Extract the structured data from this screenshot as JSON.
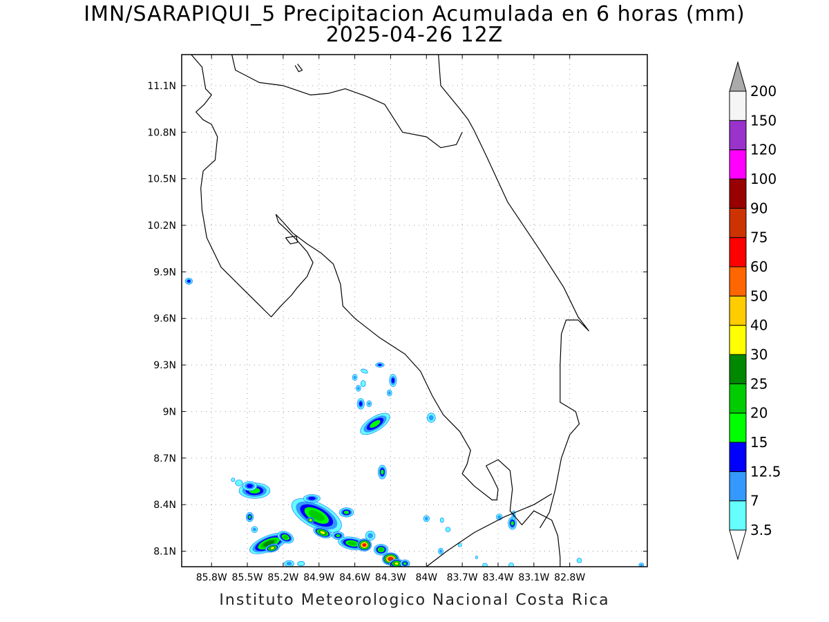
{
  "title": {
    "line1": "IMN/SARAPIQUI_5 Precipitacion Acumulada en 6 horas (mm)",
    "line2": "2025-04-26 12Z"
  },
  "footer": "Instituto Meteorologico Nacional Costa Rica",
  "map": {
    "lon_range": [
      -86.05,
      -82.15
    ],
    "lat_range": [
      8.0,
      11.3
    ],
    "x_ticks": [
      {
        "value": -85.8,
        "label": "85.8W"
      },
      {
        "value": -85.5,
        "label": "85.5W"
      },
      {
        "value": -85.2,
        "label": "85.2W"
      },
      {
        "value": -84.9,
        "label": "84.9W"
      },
      {
        "value": -84.6,
        "label": "84.6W"
      },
      {
        "value": -84.3,
        "label": "84.3W"
      },
      {
        "value": -84.0,
        "label": "84W"
      },
      {
        "value": -83.7,
        "label": "83.7W"
      },
      {
        "value": -83.4,
        "label": "83.4W"
      },
      {
        "value": -83.1,
        "label": "83.1W"
      },
      {
        "value": -82.8,
        "label": "82.8W"
      }
    ],
    "y_ticks": [
      {
        "value": 8.1,
        "label": "8.1N"
      },
      {
        "value": 8.4,
        "label": "8.4N"
      },
      {
        "value": 8.7,
        "label": "8.7N"
      },
      {
        "value": 9.0,
        "label": "9N"
      },
      {
        "value": 9.3,
        "label": "9.3N"
      },
      {
        "value": 9.6,
        "label": "9.6N"
      },
      {
        "value": 9.9,
        "label": "9.9N"
      },
      {
        "value": 10.2,
        "label": "10.2N"
      },
      {
        "value": 10.5,
        "label": "10.5N"
      },
      {
        "value": 10.8,
        "label": "10.8N"
      },
      {
        "value": 11.1,
        "label": "11.1N"
      }
    ],
    "grid": "dotted",
    "coastline": [
      [
        [
          -85.97,
          11.3
        ],
        [
          -85.88,
          11.22
        ],
        [
          -85.85,
          11.08
        ],
        [
          -85.8,
          11.04
        ],
        [
          -85.86,
          10.98
        ],
        [
          -85.93,
          10.93
        ],
        [
          -85.87,
          10.88
        ],
        [
          -85.8,
          10.85
        ],
        [
          -85.75,
          10.77
        ],
        [
          -85.77,
          10.62
        ],
        [
          -85.8,
          10.6
        ],
        [
          -85.87,
          10.55
        ],
        [
          -85.89,
          10.44
        ],
        [
          -85.88,
          10.3
        ],
        [
          -85.84,
          10.12
        ],
        [
          -85.72,
          9.93
        ],
        [
          -85.55,
          9.8
        ],
        [
          -85.3,
          9.61
        ],
        [
          -85.22,
          9.68
        ],
        [
          -85.13,
          9.75
        ],
        [
          -85.08,
          9.8
        ],
        [
          -85.0,
          9.87
        ],
        [
          -84.95,
          9.96
        ],
        [
          -85.0,
          10.03
        ],
        [
          -85.08,
          10.1
        ],
        [
          -85.17,
          10.17
        ],
        [
          -85.24,
          10.22
        ],
        [
          -85.26,
          10.27
        ],
        [
          -85.2,
          10.22
        ],
        [
          -85.12,
          10.15
        ],
        [
          -85.0,
          10.08
        ],
        [
          -84.88,
          10.02
        ],
        [
          -84.78,
          9.95
        ],
        [
          -84.72,
          9.82
        ],
        [
          -84.7,
          9.68
        ],
        [
          -84.6,
          9.6
        ],
        [
          -84.4,
          9.48
        ],
        [
          -84.18,
          9.37
        ],
        [
          -84.05,
          9.26
        ],
        [
          -83.95,
          9.1
        ],
        [
          -83.86,
          8.98
        ],
        [
          -83.72,
          8.87
        ],
        [
          -83.63,
          8.75
        ],
        [
          -83.66,
          8.66
        ],
        [
          -83.7,
          8.6
        ],
        [
          -83.6,
          8.52
        ],
        [
          -83.45,
          8.43
        ],
        [
          -83.41,
          8.43
        ],
        [
          -83.4,
          8.5
        ],
        [
          -83.45,
          8.58
        ],
        [
          -83.5,
          8.65
        ],
        [
          -83.4,
          8.69
        ],
        [
          -83.3,
          8.62
        ],
        [
          -83.28,
          8.5
        ],
        [
          -83.3,
          8.36
        ],
        [
          -83.2,
          8.27
        ],
        [
          -83.1,
          8.36
        ],
        [
          -82.95,
          8.3
        ],
        [
          -82.9,
          8.2
        ],
        [
          -82.88,
          8.06
        ],
        [
          -82.88,
          8.0
        ]
      ],
      [
        [
          -84.0,
          8.0
        ],
        [
          -83.83,
          8.1
        ],
        [
          -83.6,
          8.22
        ],
        [
          -83.35,
          8.32
        ],
        [
          -83.1,
          8.4
        ],
        [
          -82.95,
          8.47
        ]
      ],
      [
        [
          -83.9,
          11.3
        ],
        [
          -83.88,
          11.1
        ],
        [
          -83.72,
          10.95
        ],
        [
          -83.65,
          10.88
        ],
        [
          -83.6,
          10.81
        ],
        [
          -83.5,
          10.65
        ],
        [
          -83.32,
          10.35
        ],
        [
          -83.05,
          10.04
        ],
        [
          -82.85,
          9.8
        ],
        [
          -82.73,
          9.61
        ],
        [
          -82.64,
          9.52
        ],
        [
          -82.73,
          9.59
        ],
        [
          -82.83,
          9.59
        ],
        [
          -82.87,
          9.5
        ],
        [
          -82.88,
          9.3
        ],
        [
          -82.88,
          9.06
        ],
        [
          -82.75,
          9.0
        ],
        [
          -82.72,
          8.92
        ],
        [
          -82.8,
          8.85
        ],
        [
          -82.87,
          8.7
        ],
        [
          -82.92,
          8.5
        ],
        [
          -82.97,
          8.35
        ],
        [
          -83.05,
          8.25
        ]
      ],
      [
        [
          -85.63,
          11.3
        ],
        [
          -85.6,
          11.2
        ],
        [
          -85.4,
          11.12
        ],
        [
          -85.2,
          11.1
        ],
        [
          -84.97,
          11.04
        ],
        [
          -84.82,
          11.05
        ],
        [
          -84.68,
          11.08
        ],
        [
          -84.5,
          11.03
        ],
        [
          -84.35,
          10.98
        ],
        [
          -84.2,
          10.8
        ],
        [
          -84.0,
          10.77
        ],
        [
          -83.88,
          10.7
        ],
        [
          -83.75,
          10.72
        ],
        [
          -83.7,
          10.8
        ]
      ],
      [
        [
          -85.18,
          10.12
        ],
        [
          -85.09,
          10.13
        ],
        [
          -85.08,
          10.09
        ],
        [
          -85.14,
          10.08
        ],
        [
          -85.18,
          10.12
        ]
      ],
      [
        [
          -85.1,
          11.23
        ],
        [
          -85.07,
          11.19
        ],
        [
          -85.04,
          11.2
        ],
        [
          -85.08,
          11.24
        ]
      ]
    ],
    "shade_levels": [
      {
        "min": 3.5,
        "color": "#66ffff"
      },
      {
        "min": 7,
        "color": "#3399ff"
      },
      {
        "min": 12.5,
        "color": "#0000ff"
      },
      {
        "min": 15,
        "color": "#00ff00"
      },
      {
        "min": 20,
        "color": "#00cc00"
      },
      {
        "min": 25,
        "color": "#008800"
      },
      {
        "min": 30,
        "color": "#ffff00"
      },
      {
        "min": 40,
        "color": "#ffcc00"
      },
      {
        "min": 50,
        "color": "#ff6600"
      },
      {
        "min": 60,
        "color": "#ff0000"
      },
      {
        "min": 75,
        "color": "#cc3300"
      },
      {
        "min": 90,
        "color": "#990000"
      },
      {
        "min": 100,
        "color": "#ff00ff"
      },
      {
        "min": 120,
        "color": "#9933cc"
      },
      {
        "min": 150,
        "color": "#f5f5f5"
      }
    ],
    "precip_cells": [
      {
        "lon": -85.99,
        "lat": 9.84,
        "rx": 0.03,
        "ry": 0.02,
        "rot": 0,
        "max": 14
      },
      {
        "lon": -84.39,
        "lat": 9.3,
        "rx": 0.035,
        "ry": 0.015,
        "rot": 0,
        "max": 14
      },
      {
        "lon": -84.52,
        "lat": 9.26,
        "rx": 0.03,
        "ry": 0.012,
        "rot": -20,
        "max": 5
      },
      {
        "lon": -84.6,
        "lat": 9.22,
        "rx": 0.02,
        "ry": 0.02,
        "rot": 0,
        "max": 8
      },
      {
        "lon": -84.53,
        "lat": 9.18,
        "rx": 0.02,
        "ry": 0.02,
        "rot": 0,
        "max": 5
      },
      {
        "lon": -84.57,
        "lat": 9.15,
        "rx": 0.02,
        "ry": 0.02,
        "rot": 0,
        "max": 8
      },
      {
        "lon": -84.28,
        "lat": 9.2,
        "rx": 0.03,
        "ry": 0.04,
        "rot": 0,
        "max": 14
      },
      {
        "lon": -84.31,
        "lat": 9.12,
        "rx": 0.02,
        "ry": 0.02,
        "rot": 0,
        "max": 9
      },
      {
        "lon": -84.55,
        "lat": 9.05,
        "rx": 0.03,
        "ry": 0.035,
        "rot": 0,
        "max": 14
      },
      {
        "lon": -84.48,
        "lat": 9.05,
        "rx": 0.02,
        "ry": 0.02,
        "rot": 0,
        "max": 8
      },
      {
        "lon": -84.43,
        "lat": 8.92,
        "rx": 0.14,
        "ry": 0.045,
        "rot": 32,
        "max": 18
      },
      {
        "lon": -83.96,
        "lat": 8.96,
        "rx": 0.035,
        "ry": 0.03,
        "rot": 0,
        "max": 9
      },
      {
        "lon": -84.37,
        "lat": 8.61,
        "rx": 0.035,
        "ry": 0.045,
        "rot": 0,
        "max": 18
      },
      {
        "lon": -85.44,
        "lat": 8.49,
        "rx": 0.13,
        "ry": 0.05,
        "rot": 0,
        "max": 18
      },
      {
        "lon": -85.48,
        "lat": 8.52,
        "rx": 0.06,
        "ry": 0.03,
        "rot": 0,
        "max": 13
      },
      {
        "lon": -85.57,
        "lat": 8.54,
        "rx": 0.03,
        "ry": 0.02,
        "rot": 0,
        "max": 5
      },
      {
        "lon": -85.62,
        "lat": 8.56,
        "rx": 0.015,
        "ry": 0.012,
        "rot": 0,
        "max": 4
      },
      {
        "lon": -85.48,
        "lat": 8.32,
        "rx": 0.03,
        "ry": 0.03,
        "rot": 0,
        "max": 16
      },
      {
        "lon": -85.44,
        "lat": 8.24,
        "rx": 0.025,
        "ry": 0.02,
        "rot": 0,
        "max": 8
      },
      {
        "lon": -85.32,
        "lat": 8.15,
        "rx": 0.17,
        "ry": 0.05,
        "rot": 22,
        "max": 26
      },
      {
        "lon": -85.29,
        "lat": 8.12,
        "rx": 0.06,
        "ry": 0.025,
        "rot": 15,
        "max": 36
      },
      {
        "lon": -85.18,
        "lat": 8.19,
        "rx": 0.07,
        "ry": 0.035,
        "rot": -25,
        "max": 22
      },
      {
        "lon": -85.15,
        "lat": 8.02,
        "rx": 0.04,
        "ry": 0.02,
        "rot": 0,
        "max": 7
      },
      {
        "lon": -85.05,
        "lat": 8.02,
        "rx": 0.03,
        "ry": 0.015,
        "rot": 0,
        "max": 5
      },
      {
        "lon": -84.92,
        "lat": 8.33,
        "rx": 0.23,
        "ry": 0.08,
        "rot": -28,
        "max": 24
      },
      {
        "lon": -84.96,
        "lat": 8.44,
        "rx": 0.07,
        "ry": 0.025,
        "rot": 0,
        "max": 14
      },
      {
        "lon": -84.87,
        "lat": 8.22,
        "rx": 0.08,
        "ry": 0.03,
        "rot": -20,
        "max": 34
      },
      {
        "lon": -84.97,
        "lat": 8.3,
        "rx": 0.03,
        "ry": 0.02,
        "rot": 0,
        "max": 32
      },
      {
        "lon": -84.74,
        "lat": 8.2,
        "rx": 0.05,
        "ry": 0.025,
        "rot": 0,
        "max": 18
      },
      {
        "lon": -84.67,
        "lat": 8.35,
        "rx": 0.06,
        "ry": 0.03,
        "rot": 0,
        "max": 16
      },
      {
        "lon": -84.62,
        "lat": 8.15,
        "rx": 0.12,
        "ry": 0.04,
        "rot": -10,
        "max": 22
      },
      {
        "lon": -84.52,
        "lat": 8.14,
        "rx": 0.06,
        "ry": 0.04,
        "rot": 0,
        "max": 62
      },
      {
        "lon": -84.47,
        "lat": 8.2,
        "rx": 0.04,
        "ry": 0.03,
        "rot": 0,
        "max": 12
      },
      {
        "lon": -84.38,
        "lat": 8.11,
        "rx": 0.06,
        "ry": 0.035,
        "rot": 0,
        "max": 20
      },
      {
        "lon": -84.3,
        "lat": 8.05,
        "rx": 0.07,
        "ry": 0.04,
        "rot": 0,
        "max": 80
      },
      {
        "lon": -84.25,
        "lat": 8.02,
        "rx": 0.06,
        "ry": 0.03,
        "rot": 0,
        "max": 30
      },
      {
        "lon": -84.18,
        "lat": 8.02,
        "rx": 0.04,
        "ry": 0.025,
        "rot": 0,
        "max": 16
      },
      {
        "lon": -84.0,
        "lat": 8.31,
        "rx": 0.025,
        "ry": 0.02,
        "rot": 0,
        "max": 8
      },
      {
        "lon": -83.87,
        "lat": 8.3,
        "rx": 0.015,
        "ry": 0.015,
        "rot": 0,
        "max": 4
      },
      {
        "lon": -83.82,
        "lat": 8.24,
        "rx": 0.02,
        "ry": 0.015,
        "rot": 0,
        "max": 5
      },
      {
        "lon": -83.88,
        "lat": 8.1,
        "rx": 0.02,
        "ry": 0.02,
        "rot": 0,
        "max": 8
      },
      {
        "lon": -83.72,
        "lat": 8.14,
        "rx": 0.015,
        "ry": 0.012,
        "rot": 0,
        "max": 4
      },
      {
        "lon": -83.58,
        "lat": 8.06,
        "rx": 0.01,
        "ry": 0.01,
        "rot": 0,
        "max": 4
      },
      {
        "lon": -83.51,
        "lat": 8.01,
        "rx": 0.02,
        "ry": 0.012,
        "rot": 0,
        "max": 4
      },
      {
        "lon": -83.39,
        "lat": 8.32,
        "rx": 0.025,
        "ry": 0.02,
        "rot": 0,
        "max": 8
      },
      {
        "lon": -83.28,
        "lat": 8.28,
        "rx": 0.035,
        "ry": 0.04,
        "rot": 0,
        "max": 18
      },
      {
        "lon": -83.27,
        "lat": 8.33,
        "rx": 0.015,
        "ry": 0.03,
        "rot": 0,
        "max": 8
      },
      {
        "lon": -83.29,
        "lat": 8.01,
        "rx": 0.02,
        "ry": 0.015,
        "rot": 0,
        "max": 5
      },
      {
        "lon": -82.72,
        "lat": 8.04,
        "rx": 0.02,
        "ry": 0.015,
        "rot": 0,
        "max": 4
      },
      {
        "lon": -82.2,
        "lat": 8.01,
        "rx": 0.02,
        "ry": 0.015,
        "rot": 0,
        "max": 8
      }
    ]
  },
  "colorbar": {
    "labels": [
      "3.5",
      "7",
      "12.5",
      "15",
      "20",
      "25",
      "30",
      "40",
      "50",
      "60",
      "75",
      "90",
      "100",
      "120",
      "150",
      "200"
    ],
    "colors": [
      "#66ffff",
      "#3399ff",
      "#0000ff",
      "#00ff00",
      "#00cc00",
      "#008800",
      "#ffff00",
      "#ffcc00",
      "#ff6600",
      "#ff0000",
      "#cc3300",
      "#990000",
      "#ff00ff",
      "#9933cc",
      "#f5f5f5"
    ],
    "below_color": "#ffffff",
    "above_color": "#aaaaaa"
  }
}
